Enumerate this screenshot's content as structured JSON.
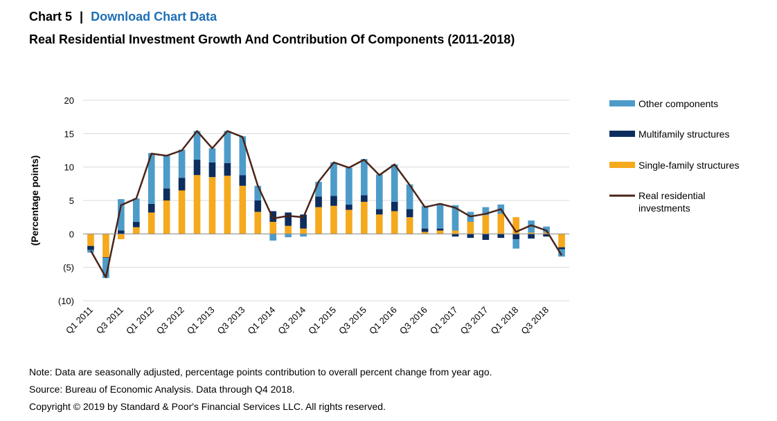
{
  "header": {
    "chart_label": "Chart 5",
    "separator": "|",
    "download_link": "Download Chart Data"
  },
  "chart_data": {
    "type": "bar",
    "stacked": true,
    "title": "Real Residential Investment Growth And Contribution Of Components (2011-2018)",
    "ylabel": "(Percentage points)",
    "xlabel": "",
    "ylim": [
      -10,
      20
    ],
    "yticks": [
      20,
      15,
      10,
      5,
      0,
      -5,
      -10
    ],
    "ytick_labels": [
      "20",
      "15",
      "10",
      "5",
      "0",
      "(5)",
      "(10)"
    ],
    "grid": true,
    "legend_position": "right",
    "categories": [
      "Q1 2011",
      "Q2 2011",
      "Q3 2011",
      "Q4 2011",
      "Q1 2012",
      "Q2 2012",
      "Q3 2012",
      "Q4 2012",
      "Q1 2013",
      "Q2 2013",
      "Q3 2013",
      "Q4 2013",
      "Q1 2014",
      "Q2 2014",
      "Q3 2014",
      "Q4 2014",
      "Q1 2015",
      "Q2 2015",
      "Q3 2015",
      "Q4 2015",
      "Q1 2016",
      "Q2 2016",
      "Q3 2016",
      "Q4 2016",
      "Q1 2017",
      "Q2 2017",
      "Q3 2017",
      "Q4 2017",
      "Q1 2018",
      "Q2 2018",
      "Q3 2018",
      "Q4 2018"
    ],
    "visible_tick_labels": [
      "Q1 2011",
      "Q3 2011",
      "Q1 2012",
      "Q3 2012",
      "Q1 2013",
      "Q3 2013",
      "Q1 2014",
      "Q3 2014",
      "Q1 2015",
      "Q3 2015",
      "Q1 2016",
      "Q3 2016",
      "Q1 2017",
      "Q3 2017",
      "Q1 2018",
      "Q3 2018"
    ],
    "series": [
      {
        "name": "Single-family structures",
        "kind": "bar",
        "color": "#f5a91d",
        "values": [
          -1.8,
          -3.5,
          -0.8,
          1.0,
          3.2,
          5.0,
          6.5,
          8.8,
          8.5,
          8.7,
          7.2,
          3.3,
          1.8,
          1.2,
          0.8,
          4.0,
          4.2,
          3.6,
          4.8,
          2.9,
          3.4,
          2.5,
          0.3,
          0.5,
          0.5,
          1.8,
          2.8,
          3.0,
          2.5,
          0.2,
          0.2,
          -2.0
        ]
      },
      {
        "name": "Multifamily structures",
        "kind": "bar",
        "color": "#0d2d5e",
        "values": [
          -0.6,
          -0.1,
          0.5,
          0.8,
          1.3,
          1.8,
          1.9,
          2.3,
          2.2,
          1.9,
          1.6,
          1.7,
          1.6,
          2.0,
          2.1,
          1.6,
          1.5,
          0.8,
          1.0,
          0.8,
          1.4,
          1.2,
          0.5,
          0.3,
          -0.4,
          -0.6,
          -0.9,
          -0.6,
          -0.8,
          -0.7,
          -0.4,
          -0.3
        ]
      },
      {
        "name": "Other components",
        "kind": "bar",
        "color": "#4d9bc9",
        "values": [
          -0.4,
          -3.0,
          4.7,
          3.5,
          7.6,
          4.9,
          4.2,
          4.3,
          2.1,
          4.8,
          5.8,
          2.2,
          -1.0,
          -0.5,
          -0.4,
          2.2,
          5.0,
          5.5,
          5.4,
          5.2,
          5.6,
          3.7,
          3.4,
          3.6,
          3.8,
          1.5,
          1.2,
          1.4,
          -1.4,
          1.8,
          0.9,
          -1.1
        ]
      },
      {
        "name": "Real residential investments",
        "kind": "line",
        "color": "#4a2418",
        "values": [
          -2.5,
          -6.5,
          4.3,
          5.3,
          12.0,
          11.7,
          12.5,
          15.4,
          12.8,
          15.4,
          14.5,
          7.2,
          2.3,
          2.7,
          2.5,
          7.8,
          10.7,
          9.9,
          11.1,
          8.8,
          10.4,
          7.3,
          4.0,
          4.5,
          3.9,
          2.6,
          3.0,
          3.7,
          0.3,
          1.3,
          0.5,
          -3.2
        ]
      }
    ],
    "legend": [
      {
        "label": "Other components",
        "color": "#4d9bc9",
        "kind": "bar"
      },
      {
        "label": "Multifamily structures",
        "color": "#0d2d5e",
        "kind": "bar"
      },
      {
        "label": "Single-family structures",
        "color": "#f5a91d",
        "kind": "bar"
      },
      {
        "label": "Real residential investments",
        "color": "#4a2418",
        "kind": "line"
      }
    ]
  },
  "footer": {
    "note": "Note: Data are seasonally adjusted, percentage points contribution to overall percent change from year ago.",
    "source": "Source: Bureau of Economic Analysis. Data through Q4 2018.",
    "copyright": "Copyright © 2019 by Standard & Poor's Financial Services LLC. All rights reserved."
  }
}
